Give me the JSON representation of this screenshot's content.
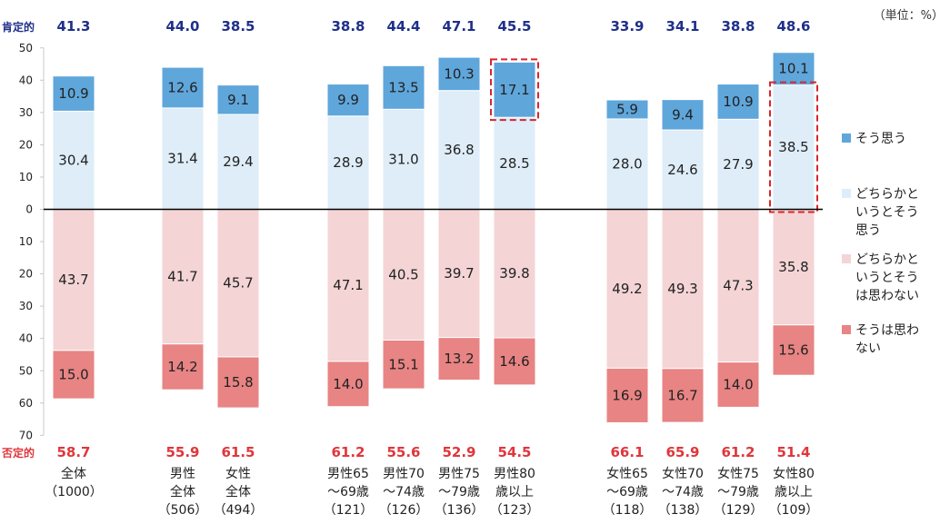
{
  "unit_label": "（単位：%）",
  "row_labels": {
    "positive": "肯定的",
    "negative": "否定的"
  },
  "colors": {
    "strong_positive": "#5fa6db",
    "weak_positive": "#deedf8",
    "weak_negative": "#f4d4d5",
    "strong_negative": "#e88484",
    "positive_text": "#1f2f8a",
    "negative_text": "#e0363b",
    "highlight_border": "#d8262c"
  },
  "chart_data": {
    "type": "bar",
    "stacked": "diverging",
    "y_range_positive": [
      0,
      50
    ],
    "y_range_negative": [
      0,
      70
    ],
    "y_ticks_positive": [
      50,
      40,
      30,
      20,
      10,
      0
    ],
    "y_ticks_negative": [
      10,
      20,
      30,
      40,
      50,
      60,
      70
    ],
    "categories": [
      {
        "lines": [
          "全体",
          "（1000）"
        ],
        "group": 0
      },
      {
        "lines": [
          "男性",
          "全体",
          "（506）"
        ],
        "group": 1
      },
      {
        "lines": [
          "女性",
          "全体",
          "（494）"
        ],
        "group": 1
      },
      {
        "lines": [
          "男性65",
          "～69歳",
          "（121）"
        ],
        "group": 2
      },
      {
        "lines": [
          "男性70",
          "～74歳",
          "（126）"
        ],
        "group": 2
      },
      {
        "lines": [
          "男性75",
          "～79歳",
          "（136）"
        ],
        "group": 2
      },
      {
        "lines": [
          "男性80",
          "歳以上",
          "（123）"
        ],
        "group": 2
      },
      {
        "lines": [
          "女性65",
          "～69歳",
          "（118）"
        ],
        "group": 3
      },
      {
        "lines": [
          "女性70",
          "～74歳",
          "（138）"
        ],
        "group": 3
      },
      {
        "lines": [
          "女性75",
          "～79歳",
          "（129）"
        ],
        "group": 3
      },
      {
        "lines": [
          "女性80",
          "歳以上",
          "（109）"
        ],
        "group": 3
      }
    ],
    "series": [
      {
        "name": "そう思う",
        "legend_lines": [
          "そう思う"
        ],
        "side": "positive",
        "values": [
          10.9,
          12.6,
          9.1,
          9.9,
          13.5,
          10.3,
          17.1,
          5.9,
          9.4,
          10.9,
          10.1
        ]
      },
      {
        "name": "どちらかというとそう思う",
        "legend_lines": [
          "どちらかと",
          "いうとそう",
          "思う"
        ],
        "side": "positive",
        "values": [
          30.4,
          31.4,
          29.4,
          28.9,
          31.0,
          36.8,
          28.5,
          28.0,
          24.6,
          27.9,
          38.5
        ]
      },
      {
        "name": "どちらかというとそうは思わない",
        "legend_lines": [
          "どちらかと",
          "いうとそう",
          "は思わない"
        ],
        "side": "negative",
        "values": [
          43.7,
          41.7,
          45.7,
          47.1,
          40.5,
          39.7,
          39.8,
          49.2,
          49.3,
          47.3,
          35.8
        ]
      },
      {
        "name": "そうは思わない",
        "legend_lines": [
          "そうは思わ",
          "ない"
        ],
        "side": "negative",
        "values": [
          15.0,
          14.2,
          15.8,
          14.0,
          15.1,
          13.2,
          14.6,
          16.9,
          16.7,
          14.0,
          15.6
        ]
      }
    ],
    "positive_totals": [
      41.3,
      44.0,
      38.5,
      38.8,
      44.4,
      47.1,
      45.5,
      33.9,
      34.1,
      38.8,
      48.6
    ],
    "negative_totals": [
      58.7,
      55.9,
      61.5,
      61.2,
      55.6,
      52.9,
      54.5,
      66.1,
      65.9,
      61.2,
      51.4
    ],
    "highlights": [
      {
        "category_index": 6,
        "series_index": 0
      },
      {
        "category_index": 10,
        "series_index": 1
      }
    ]
  }
}
